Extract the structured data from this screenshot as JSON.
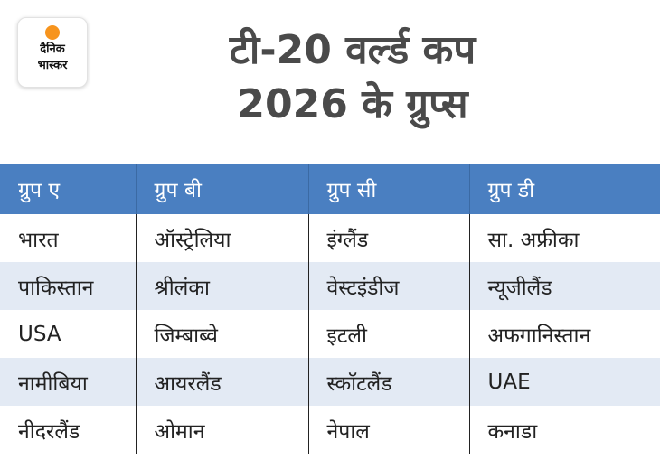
{
  "logo": {
    "line1": "दैनिक",
    "line2": "भास्कर"
  },
  "title": {
    "line1": "टी-20 वर्ल्ड कप",
    "line2": "2026 के ग्रुप्स"
  },
  "table": {
    "headers": [
      "ग्रुप ए",
      "ग्रुप बी",
      "ग्रुप सी",
      "ग्रुप डी"
    ],
    "rows": [
      [
        "भारत",
        "ऑस्ट्रेलिया",
        "इंग्लैंड",
        "सा. अफ्रीका"
      ],
      [
        "पाकिस्तान",
        "श्रीलंका",
        "वेस्टइंडीज",
        "न्यूजीलैंड"
      ],
      [
        "USA",
        "जिम्बाब्वे",
        "इटली",
        "अफगानिस्तान"
      ],
      [
        "नामीबिया",
        "आयरलैंड",
        "स्कॉटलैंड",
        "UAE"
      ],
      [
        "नीदरलैंड",
        "ओमान",
        "नेपाल",
        "कनाडा"
      ]
    ]
  },
  "colors": {
    "header_bg": "#4a7fc1",
    "alt_row_bg": "#e3eaf4",
    "title_text": "#4a4a4a",
    "logo_sun": "#f7941d"
  }
}
